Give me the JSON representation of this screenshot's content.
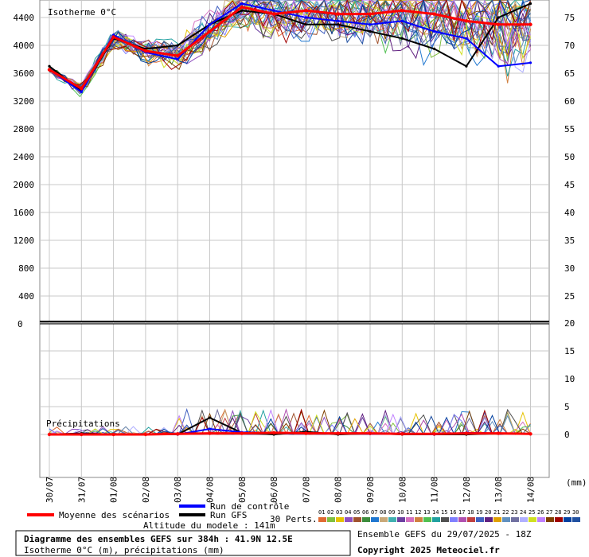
{
  "header": {
    "title": "Diagramme des ensembles GEFS sur 384h : 41.9N 12.5E",
    "subtitle": "Isotherme 0°C (m), précipitations (mm)",
    "altitude": "Altitude du modele : 141m",
    "run_info": "Ensemble GEFS du 29/07/2025 - 18Z",
    "copyright": "Copyright 2025 Meteociel.fr"
  },
  "legend": {
    "mean": "Moyenne des scénarios",
    "control": "Run de contrôle",
    "gfs": "Run GFS",
    "perts": "30 Perts.",
    "pert_ids": [
      "01",
      "02",
      "03",
      "04",
      "05",
      "06",
      "07",
      "08",
      "09",
      "10",
      "11",
      "12",
      "13",
      "14",
      "15",
      "16",
      "17",
      "18",
      "19",
      "20",
      "21",
      "22",
      "23",
      "24",
      "25",
      "26",
      "27",
      "28",
      "29",
      "30"
    ],
    "pert_colors": [
      "#e06a32",
      "#7fbf3f",
      "#e6c200",
      "#8f4fbf",
      "#a0522d",
      "#3c8c3c",
      "#1f77d0",
      "#c8a878",
      "#40b0b0",
      "#6b3fa0",
      "#d46fbf",
      "#d08040",
      "#50c050",
      "#20a0a0",
      "#505050",
      "#8080ff",
      "#b050b0",
      "#c04040",
      "#4060c0",
      "#602080",
      "#e0a000",
      "#6090c0",
      "#7070a0",
      "#b0b0ff",
      "#d0e020",
      "#c080ff",
      "#804000",
      "#a00000",
      "#0040a0",
      "#2050a0"
    ]
  },
  "chart_data": [
    {
      "type": "line",
      "title": "Isotherme 0°C",
      "x": [
        "30/07",
        "31/07",
        "01/08",
        "02/08",
        "03/08",
        "04/08",
        "05/08",
        "06/08",
        "07/08",
        "08/08",
        "09/08",
        "10/08",
        "11/08",
        "12/08",
        "13/08",
        "14/08"
      ],
      "ylim": [
        0,
        4600
      ],
      "yticks_left": [
        400,
        800,
        1200,
        1600,
        2000,
        2400,
        2800,
        3200,
        3600,
        4000,
        4400
      ],
      "yticks_right": [
        25,
        30,
        35,
        40,
        45,
        50,
        55,
        60,
        65,
        70,
        75
      ],
      "series": [
        {
          "name": "Moyenne des scénarios",
          "color": "#ff0000",
          "values": [
            3650,
            3380,
            4120,
            3920,
            3850,
            4200,
            4550,
            4450,
            4500,
            4450,
            4450,
            4500,
            4450,
            4350,
            4300,
            4300
          ]
        },
        {
          "name": "Run de contrôle",
          "color": "#0000ff",
          "values": [
            3650,
            3330,
            4150,
            3900,
            3800,
            4300,
            4600,
            4500,
            4400,
            4350,
            4300,
            4350,
            4200,
            4100,
            3700,
            3750
          ]
        },
        {
          "name": "Run GFS",
          "color": "#000000",
          "values": [
            3700,
            3350,
            4100,
            3950,
            4000,
            4300,
            4500,
            4450,
            4300,
            4300,
            4200,
            4100,
            3950,
            3700,
            4400,
            4600
          ]
        }
      ]
    },
    {
      "type": "line",
      "title": "Précipitations",
      "unit": "(mm)",
      "x": [
        "30/07",
        "31/07",
        "01/08",
        "02/08",
        "03/08",
        "04/08",
        "05/08",
        "06/08",
        "07/08",
        "08/08",
        "09/08",
        "10/08",
        "11/08",
        "12/08",
        "13/08",
        "14/08"
      ],
      "ylim": [
        -5,
        20
      ],
      "yticks_right": [
        0,
        5,
        10,
        15,
        20
      ],
      "series": [
        {
          "name": "Moyenne des scénarios",
          "color": "#ff0000",
          "values": [
            0,
            0,
            0,
            0,
            0.1,
            0.2,
            0.2,
            0.3,
            0.2,
            0.2,
            0.2,
            0.1,
            0.1,
            0.2,
            0.2,
            0.1
          ]
        },
        {
          "name": "Run de contrôle",
          "color": "#0000ff",
          "values": [
            0,
            0.1,
            0,
            0,
            0,
            1.0,
            0.4,
            0.3,
            0.2,
            0.2,
            0.1,
            0.1,
            0,
            0.3,
            0.2,
            0.1
          ]
        },
        {
          "name": "Run GFS",
          "color": "#000000",
          "values": [
            0,
            0.2,
            0,
            0,
            0,
            3.0,
            0.3,
            0,
            0.5,
            0,
            0.2,
            0,
            0,
            0,
            0.2,
            0.1
          ]
        }
      ]
    }
  ]
}
